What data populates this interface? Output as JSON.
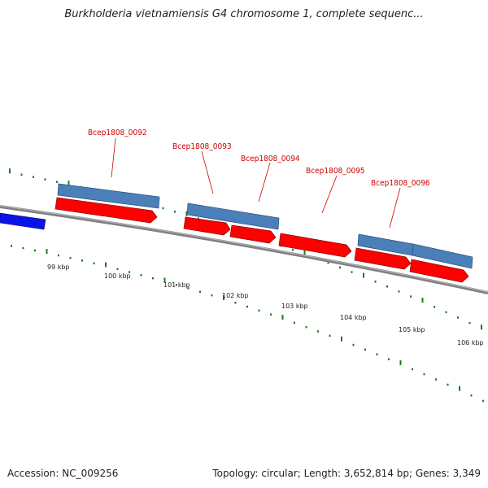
{
  "title": "Burkholderia vietnamiensis G4 chromosome 1, complete sequenc...",
  "footer": {
    "accession": "Accession: NC_009256",
    "summary": "Topology: circular; Length: 3,652,814 bp; Genes: 3,349"
  },
  "colors": {
    "gene_forward": "#ff0000",
    "gene_cds": "#4a7fb8",
    "gene_other_strand": "#0000ff",
    "backbone": "#808080",
    "ticks": "#1a7a1a"
  },
  "scale_labels": [
    "99 kbp",
    "100 kbp",
    "101 kbp",
    "102 kbp",
    "103 kbp",
    "104 kbp",
    "105 kbp",
    "106 kbp"
  ],
  "genes": [
    {
      "name": "Bcep1808_0092"
    },
    {
      "name": "Bcep1808_0093"
    },
    {
      "name": "Bcep1808_0094"
    },
    {
      "name": "Bcep1808_0095"
    },
    {
      "name": "Bcep1808_0096"
    }
  ]
}
